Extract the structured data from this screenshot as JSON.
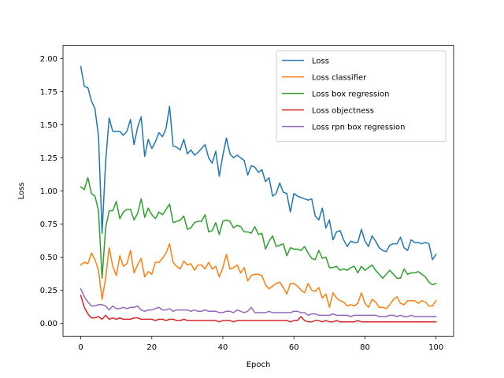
{
  "chart_data": {
    "type": "line",
    "xlabel": "Epoch",
    "ylabel": "Loss",
    "xlim": [
      -5,
      104.95
    ],
    "ylim": [
      -0.1,
      2.1
    ],
    "xticks": [
      0,
      20,
      40,
      60,
      80,
      100
    ],
    "xtick_labels": [
      "0",
      "20",
      "40",
      "60",
      "80",
      "100"
    ],
    "yticks": [
      0.0,
      0.25,
      0.5,
      0.75,
      1.0,
      1.25,
      1.5,
      1.75,
      2.0
    ],
    "ytick_labels": [
      "0.00",
      "0.25",
      "0.50",
      "0.75",
      "1.00",
      "1.25",
      "1.50",
      "1.75",
      "2.00"
    ],
    "grid": false,
    "legend_position": "top-right",
    "x_start": 0,
    "x_step": 1,
    "series": [
      {
        "name": "Loss",
        "color": "#1f77b4",
        "values": [
          1.94,
          1.79,
          1.78,
          1.68,
          1.62,
          1.41,
          0.68,
          1.22,
          1.55,
          1.45,
          1.45,
          1.45,
          1.42,
          1.45,
          1.54,
          1.35,
          1.48,
          1.56,
          1.26,
          1.39,
          1.32,
          1.37,
          1.44,
          1.41,
          1.47,
          1.64,
          1.34,
          1.33,
          1.31,
          1.39,
          1.28,
          1.31,
          1.27,
          1.29,
          1.32,
          1.35,
          1.25,
          1.21,
          1.3,
          1.11,
          1.27,
          1.4,
          1.28,
          1.25,
          1.27,
          1.25,
          1.23,
          1.12,
          1.19,
          1.18,
          1.14,
          1.16,
          1.07,
          1.1,
          0.96,
          0.98,
          1.06,
          0.99,
          0.98,
          0.84,
          0.98,
          0.96,
          0.95,
          0.94,
          0.93,
          0.94,
          0.81,
          0.78,
          0.87,
          0.72,
          0.78,
          0.63,
          0.69,
          0.7,
          0.63,
          0.58,
          0.62,
          0.61,
          0.61,
          0.71,
          0.62,
          0.58,
          0.66,
          0.62,
          0.57,
          0.55,
          0.54,
          0.59,
          0.6,
          0.6,
          0.65,
          0.57,
          0.55,
          0.63,
          0.61,
          0.61,
          0.6,
          0.61,
          0.6,
          0.48,
          0.52
        ]
      },
      {
        "name": "Loss classifier",
        "color": "#ff7f0e",
        "values": [
          0.44,
          0.46,
          0.45,
          0.53,
          0.48,
          0.4,
          0.18,
          0.34,
          0.57,
          0.43,
          0.36,
          0.51,
          0.43,
          0.45,
          0.55,
          0.38,
          0.44,
          0.49,
          0.35,
          0.39,
          0.37,
          0.46,
          0.46,
          0.49,
          0.53,
          0.6,
          0.46,
          0.43,
          0.41,
          0.47,
          0.44,
          0.45,
          0.4,
          0.44,
          0.44,
          0.41,
          0.46,
          0.41,
          0.43,
          0.35,
          0.42,
          0.52,
          0.41,
          0.42,
          0.44,
          0.38,
          0.42,
          0.32,
          0.36,
          0.37,
          0.37,
          0.36,
          0.29,
          0.26,
          0.28,
          0.3,
          0.31,
          0.27,
          0.22,
          0.3,
          0.3,
          0.28,
          0.25,
          0.23,
          0.3,
          0.25,
          0.24,
          0.27,
          0.19,
          0.22,
          0.12,
          0.23,
          0.19,
          0.17,
          0.16,
          0.13,
          0.14,
          0.13,
          0.15,
          0.23,
          0.15,
          0.12,
          0.18,
          0.16,
          0.12,
          0.12,
          0.11,
          0.14,
          0.18,
          0.2,
          0.15,
          0.14,
          0.17,
          0.17,
          0.17,
          0.15,
          0.17,
          0.16,
          0.13,
          0.13,
          0.17
        ]
      },
      {
        "name": "Loss box regression",
        "color": "#2ca02c",
        "values": [
          1.03,
          1.01,
          1.1,
          0.98,
          0.96,
          0.85,
          0.34,
          0.72,
          0.85,
          0.85,
          0.92,
          0.79,
          0.84,
          0.86,
          0.86,
          0.78,
          0.83,
          0.94,
          0.8,
          0.87,
          0.82,
          0.79,
          0.84,
          0.82,
          0.86,
          0.9,
          0.76,
          0.77,
          0.78,
          0.81,
          0.71,
          0.72,
          0.76,
          0.77,
          0.77,
          0.82,
          0.69,
          0.7,
          0.76,
          0.67,
          0.77,
          0.78,
          0.77,
          0.72,
          0.74,
          0.73,
          0.69,
          0.69,
          0.68,
          0.73,
          0.67,
          0.68,
          0.56,
          0.62,
          0.66,
          0.58,
          0.59,
          0.6,
          0.51,
          0.57,
          0.56,
          0.56,
          0.55,
          0.58,
          0.53,
          0.49,
          0.48,
          0.55,
          0.49,
          0.5,
          0.42,
          0.42,
          0.43,
          0.4,
          0.41,
          0.4,
          0.42,
          0.43,
          0.38,
          0.43,
          0.4,
          0.42,
          0.44,
          0.4,
          0.37,
          0.34,
          0.37,
          0.4,
          0.37,
          0.34,
          0.34,
          0.41,
          0.37,
          0.38,
          0.38,
          0.39,
          0.37,
          0.35,
          0.31,
          0.29,
          0.3
        ]
      },
      {
        "name": "Loss objectness",
        "color": "#d62728",
        "values": [
          0.21,
          0.12,
          0.07,
          0.04,
          0.04,
          0.05,
          0.03,
          0.06,
          0.03,
          0.04,
          0.03,
          0.04,
          0.03,
          0.03,
          0.03,
          0.04,
          0.04,
          0.03,
          0.03,
          0.03,
          0.03,
          0.02,
          0.03,
          0.03,
          0.02,
          0.03,
          0.03,
          0.02,
          0.02,
          0.03,
          0.02,
          0.02,
          0.02,
          0.02,
          0.02,
          0.02,
          0.02,
          0.02,
          0.02,
          0.01,
          0.02,
          0.02,
          0.02,
          0.01,
          0.02,
          0.02,
          0.02,
          0.02,
          0.02,
          0.02,
          0.02,
          0.02,
          0.02,
          0.02,
          0.02,
          0.02,
          0.02,
          0.02,
          0.02,
          0.01,
          0.02,
          0.02,
          0.05,
          0.02,
          0.01,
          0.01,
          0.02,
          0.02,
          0.01,
          0.02,
          0.01,
          0.01,
          0.02,
          0.01,
          0.01,
          0.01,
          0.01,
          0.01,
          0.02,
          0.01,
          0.01,
          0.01,
          0.01,
          0.01,
          0.01,
          0.01,
          0.01,
          0.01,
          0.01,
          0.01,
          0.01,
          0.01,
          0.01,
          0.01,
          0.01,
          0.01,
          0.01,
          0.01,
          0.01,
          0.01,
          0.01
        ]
      },
      {
        "name": "Loss rpn box regression",
        "color": "#9467bd",
        "values": [
          0.26,
          0.2,
          0.16,
          0.13,
          0.13,
          0.14,
          0.14,
          0.13,
          0.1,
          0.13,
          0.11,
          0.11,
          0.12,
          0.11,
          0.12,
          0.12,
          0.13,
          0.1,
          0.09,
          0.1,
          0.1,
          0.11,
          0.12,
          0.1,
          0.1,
          0.11,
          0.09,
          0.1,
          0.1,
          0.1,
          0.1,
          0.09,
          0.1,
          0.09,
          0.09,
          0.1,
          0.09,
          0.09,
          0.09,
          0.08,
          0.08,
          0.09,
          0.09,
          0.08,
          0.1,
          0.09,
          0.08,
          0.09,
          0.12,
          0.08,
          0.08,
          0.08,
          0.08,
          0.09,
          0.08,
          0.08,
          0.08,
          0.08,
          0.08,
          0.08,
          0.09,
          0.09,
          0.08,
          0.08,
          0.06,
          0.07,
          0.07,
          0.06,
          0.06,
          0.06,
          0.06,
          0.07,
          0.06,
          0.06,
          0.06,
          0.06,
          0.05,
          0.06,
          0.06,
          0.06,
          0.06,
          0.06,
          0.06,
          0.06,
          0.05,
          0.05,
          0.05,
          0.06,
          0.06,
          0.05,
          0.06,
          0.05,
          0.05,
          0.06,
          0.05,
          0.05,
          0.05,
          0.05,
          0.05,
          0.05,
          0.05
        ]
      }
    ]
  }
}
